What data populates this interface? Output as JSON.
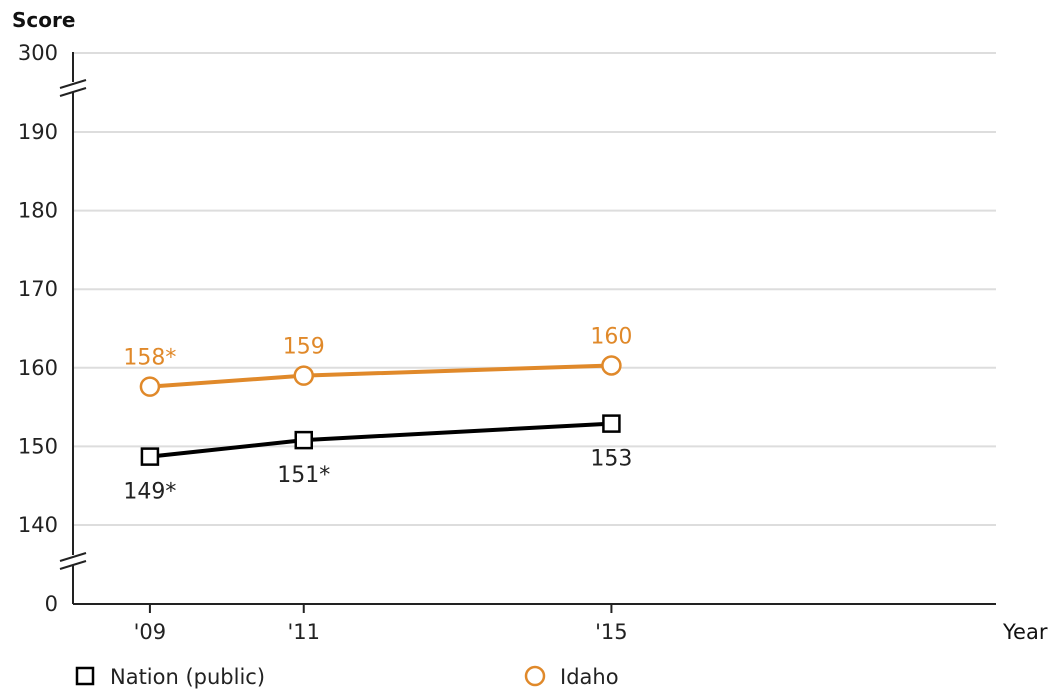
{
  "chart_data": {
    "type": "line",
    "ylabel": "Score",
    "xlabel": "Year",
    "x": [
      "'09",
      "'11",
      "'15"
    ],
    "x_numeric": [
      2009,
      2011,
      2015
    ],
    "xlim": [
      2008,
      2020
    ],
    "y_ticks": [
      "0",
      "140",
      "150",
      "160",
      "170",
      "180",
      "190",
      "300"
    ],
    "ylim_visible_segment": [
      140,
      190
    ],
    "axis_breaks": [
      "between 0 and 140",
      "between 190 and 300"
    ],
    "grid": true,
    "legend_position": "bottom",
    "series": [
      {
        "name": "Nation (public)",
        "marker": "square",
        "color": "#000000",
        "values": [
          149,
          151,
          153
        ],
        "plotted_values": [
          148.7,
          150.8,
          152.9
        ],
        "labels": [
          "149*",
          "151*",
          "153"
        ]
      },
      {
        "name": "Idaho",
        "marker": "circle",
        "color": "#e0892a",
        "values": [
          158,
          159,
          160
        ],
        "plotted_values": [
          157.6,
          159.0,
          160.3
        ],
        "labels": [
          "158*",
          "159",
          "160"
        ]
      }
    ]
  }
}
